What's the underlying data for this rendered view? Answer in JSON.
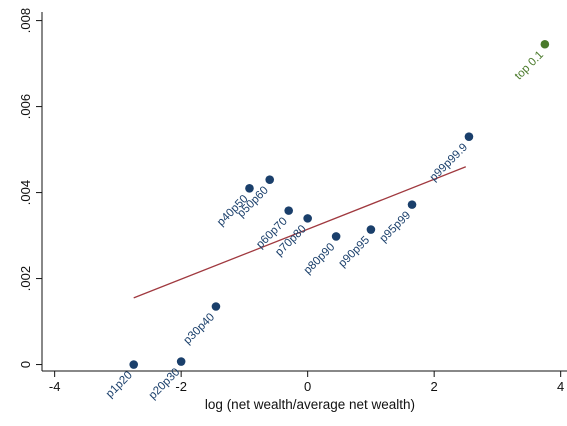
{
  "chart_data": {
    "type": "scatter",
    "title": "",
    "xlabel": "log (net wealth/average net wealth)",
    "ylabel": "",
    "xlim": [
      -4.2,
      4.1
    ],
    "ylim": [
      -0.00015,
      0.0082
    ],
    "x_ticks": [
      {
        "value": -4,
        "label": "-4"
      },
      {
        "value": -2,
        "label": "-2"
      },
      {
        "value": 0,
        "label": "0"
      },
      {
        "value": 2,
        "label": "2"
      },
      {
        "value": 4,
        "label": "4"
      }
    ],
    "y_ticks": [
      {
        "value": 0,
        "label": "0"
      },
      {
        "value": 0.002,
        "label": ".002"
      },
      {
        "value": 0.004,
        "label": ".004"
      },
      {
        "value": 0.006,
        "label": ".006"
      },
      {
        "value": 0.008,
        "label": ".008"
      }
    ],
    "grid": false,
    "points": [
      {
        "label": "p1p20",
        "x": -2.75,
        "y": 0.0,
        "color": "#1a3f6b"
      },
      {
        "label": "p20p30",
        "x": -2.0,
        "y": 7e-05,
        "color": "#1a3f6b"
      },
      {
        "label": "p30p40",
        "x": -1.45,
        "y": 0.00135,
        "color": "#1a3f6b"
      },
      {
        "label": "p40p50",
        "x": -0.92,
        "y": 0.0041,
        "color": "#1a3f6b"
      },
      {
        "label": "p50p60",
        "x": -0.6,
        "y": 0.0043,
        "color": "#1a3f6b"
      },
      {
        "label": "p60p70",
        "x": -0.3,
        "y": 0.00358,
        "color": "#1a3f6b"
      },
      {
        "label": "p70p80",
        "x": 0.0,
        "y": 0.0034,
        "color": "#1a3f6b"
      },
      {
        "label": "p80p90",
        "x": 0.45,
        "y": 0.00298,
        "color": "#1a3f6b"
      },
      {
        "label": "p90p95",
        "x": 1.0,
        "y": 0.00314,
        "color": "#1a3f6b"
      },
      {
        "label": "p95p99",
        "x": 1.65,
        "y": 0.00372,
        "color": "#1a3f6b"
      },
      {
        "label": "p99p99.9",
        "x": 2.55,
        "y": 0.0053,
        "color": "#1a3f6b"
      },
      {
        "label": "top 0.1",
        "x": 3.75,
        "y": 0.00745,
        "color": "#4a7a2a"
      }
    ],
    "fit_line": {
      "x": [
        -2.75,
        2.5
      ],
      "y": [
        0.00155,
        0.0046
      ],
      "color": "#a0393f"
    }
  }
}
